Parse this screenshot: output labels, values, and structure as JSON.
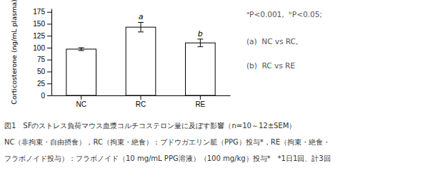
{
  "chart_data": {
    "type": "bar",
    "categories": [
      "NC",
      "RC",
      "RE"
    ],
    "values": [
      97,
      143,
      110
    ],
    "errors": [
      3,
      10,
      8
    ],
    "sig_labels": [
      null,
      "a",
      "b"
    ],
    "color": "#ffffff",
    "ylabel": "Corticosterone (ng/mL plasma)",
    "ylim": [
      0,
      182
    ],
    "yticks": [
      0,
      25,
      50,
      75,
      100,
      125,
      150,
      175
    ],
    "grid": false,
    "annotations": [
      "ᵃP<0.001,  ᵇP<0.05;",
      "(a)  NC vs RC,",
      "(b)  RC vs RE"
    ],
    "caption_lines": [
      "図1　SFのストレス負荷マウス血漿コルチコステロン量に及ぼす影響（n=10～12±SEM）",
      "NC（非拘束・自由摂食），RC（拘束・絶食）：ブドウガエリン籠（PPG）投与*，RE（拘束・絶食・",
      "フラボノイド投与）：フラボノイド（10 mg/mL PPG溶液）（100 mg/kg）投与*　*1日1回、計3回"
    ]
  }
}
